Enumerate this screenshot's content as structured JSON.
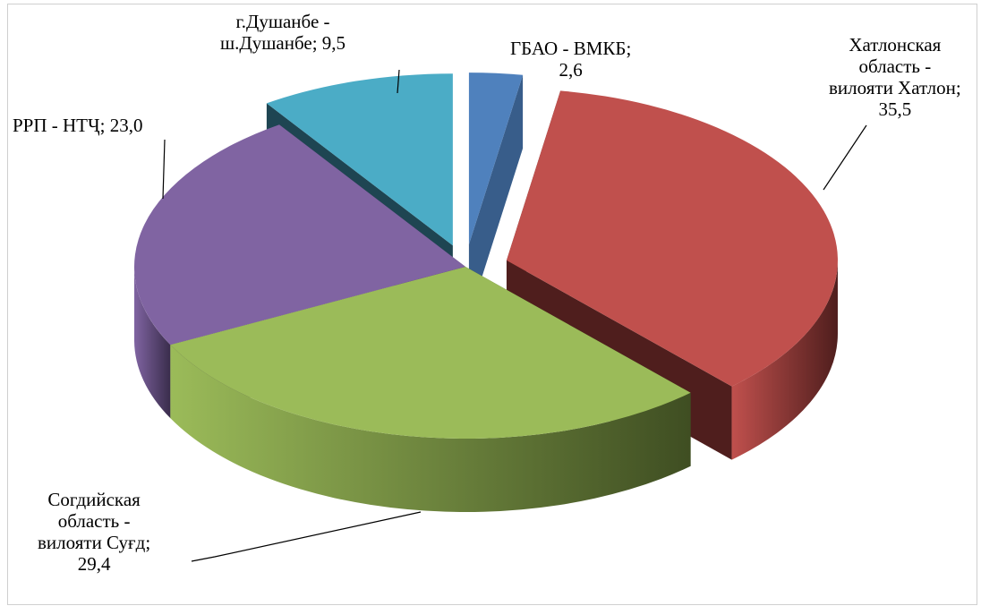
{
  "chart_data": {
    "type": "pie",
    "title": "",
    "three_d": true,
    "exploded": true,
    "series": [
      {
        "name": "",
        "categories": [
          "ГБАО - ВМКБ",
          "Хатлонская область - вилояти Хатлон",
          "Согдийская область - вилояти Суғд",
          "РРП - НТҶ",
          "г.Душанбе - ш.Душанбе"
        ],
        "values": [
          2.6,
          35.5,
          29.4,
          23.0,
          9.5
        ]
      }
    ],
    "data_labels": [
      {
        "category": "ГБАО - ВМКБ",
        "lines": [
          "ГБАО - ВМКБ;",
          "2,6"
        ]
      },
      {
        "category": "Хатлонская область - вилояти Хатлон",
        "lines": [
          "Хатлонская",
          "область -",
          "вилояти Хатлон;",
          "35,5"
        ]
      },
      {
        "category": "Согдийская область - вилояти Суғд",
        "lines": [
          "Согдийская",
          "область -",
          "вилояти Суғд;",
          "29,4"
        ]
      },
      {
        "category": "РРП - НТҶ",
        "lines": [
          "РРП - НТҶ; 23,0"
        ]
      },
      {
        "category": "г.Душанбе - ш.Душанбе",
        "lines": [
          "г.Душанбе -",
          "ш.Душанбе; 9,5"
        ]
      }
    ],
    "colors": [
      "#4f81bd",
      "#c0504d",
      "#9bbb59",
      "#8064a2",
      "#4bacc6"
    ],
    "side_colors": [
      "#385d8a",
      "#4f1e1d",
      "#3f4e22",
      "#3a2d4c",
      "#1e4552"
    ],
    "legend": "none"
  }
}
